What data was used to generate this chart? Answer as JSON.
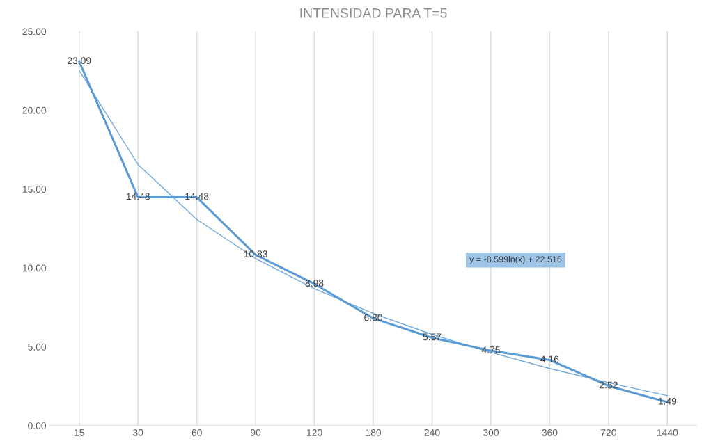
{
  "chart_data": {
    "type": "line",
    "title": "INTENSIDAD PARA T=5",
    "categories": [
      "15",
      "30",
      "60",
      "90",
      "120",
      "180",
      "240",
      "300",
      "360",
      "720",
      "1440"
    ],
    "series": [
      {
        "color": "#5b9bd5",
        "values": [
          23.09,
          14.48,
          14.48,
          10.83,
          8.98,
          6.8,
          5.57,
          4.75,
          4.16,
          2.52,
          1.49
        ],
        "value_labels": [
          "23.09",
          "14.48",
          "14.48",
          "10.83",
          "8.98",
          "6.80",
          "5.57",
          "4.75",
          "4.16",
          "2.52",
          "1.49"
        ]
      },
      {
        "color": "#6fa8dc",
        "values": [
          22.52,
          16.56,
          13.07,
          10.6,
          8.68,
          7.11,
          5.78,
          4.64,
          3.62,
          2.72,
          1.9
        ]
      }
    ],
    "annotations": [
      "y = -8.599ln(x) + 22.516"
    ],
    "ylim": [
      0,
      25
    ],
    "yticks": [
      {
        "value": 0,
        "label": "0.00"
      },
      {
        "value": 5,
        "label": "5.00"
      },
      {
        "value": 10,
        "label": "10.00"
      },
      {
        "value": 15,
        "label": "15.00"
      },
      {
        "value": 20,
        "label": "20.00"
      },
      {
        "value": 25,
        "label": "25.00"
      }
    ],
    "grid": "x",
    "legend": false,
    "marker": "none",
    "line_style": "solid"
  }
}
